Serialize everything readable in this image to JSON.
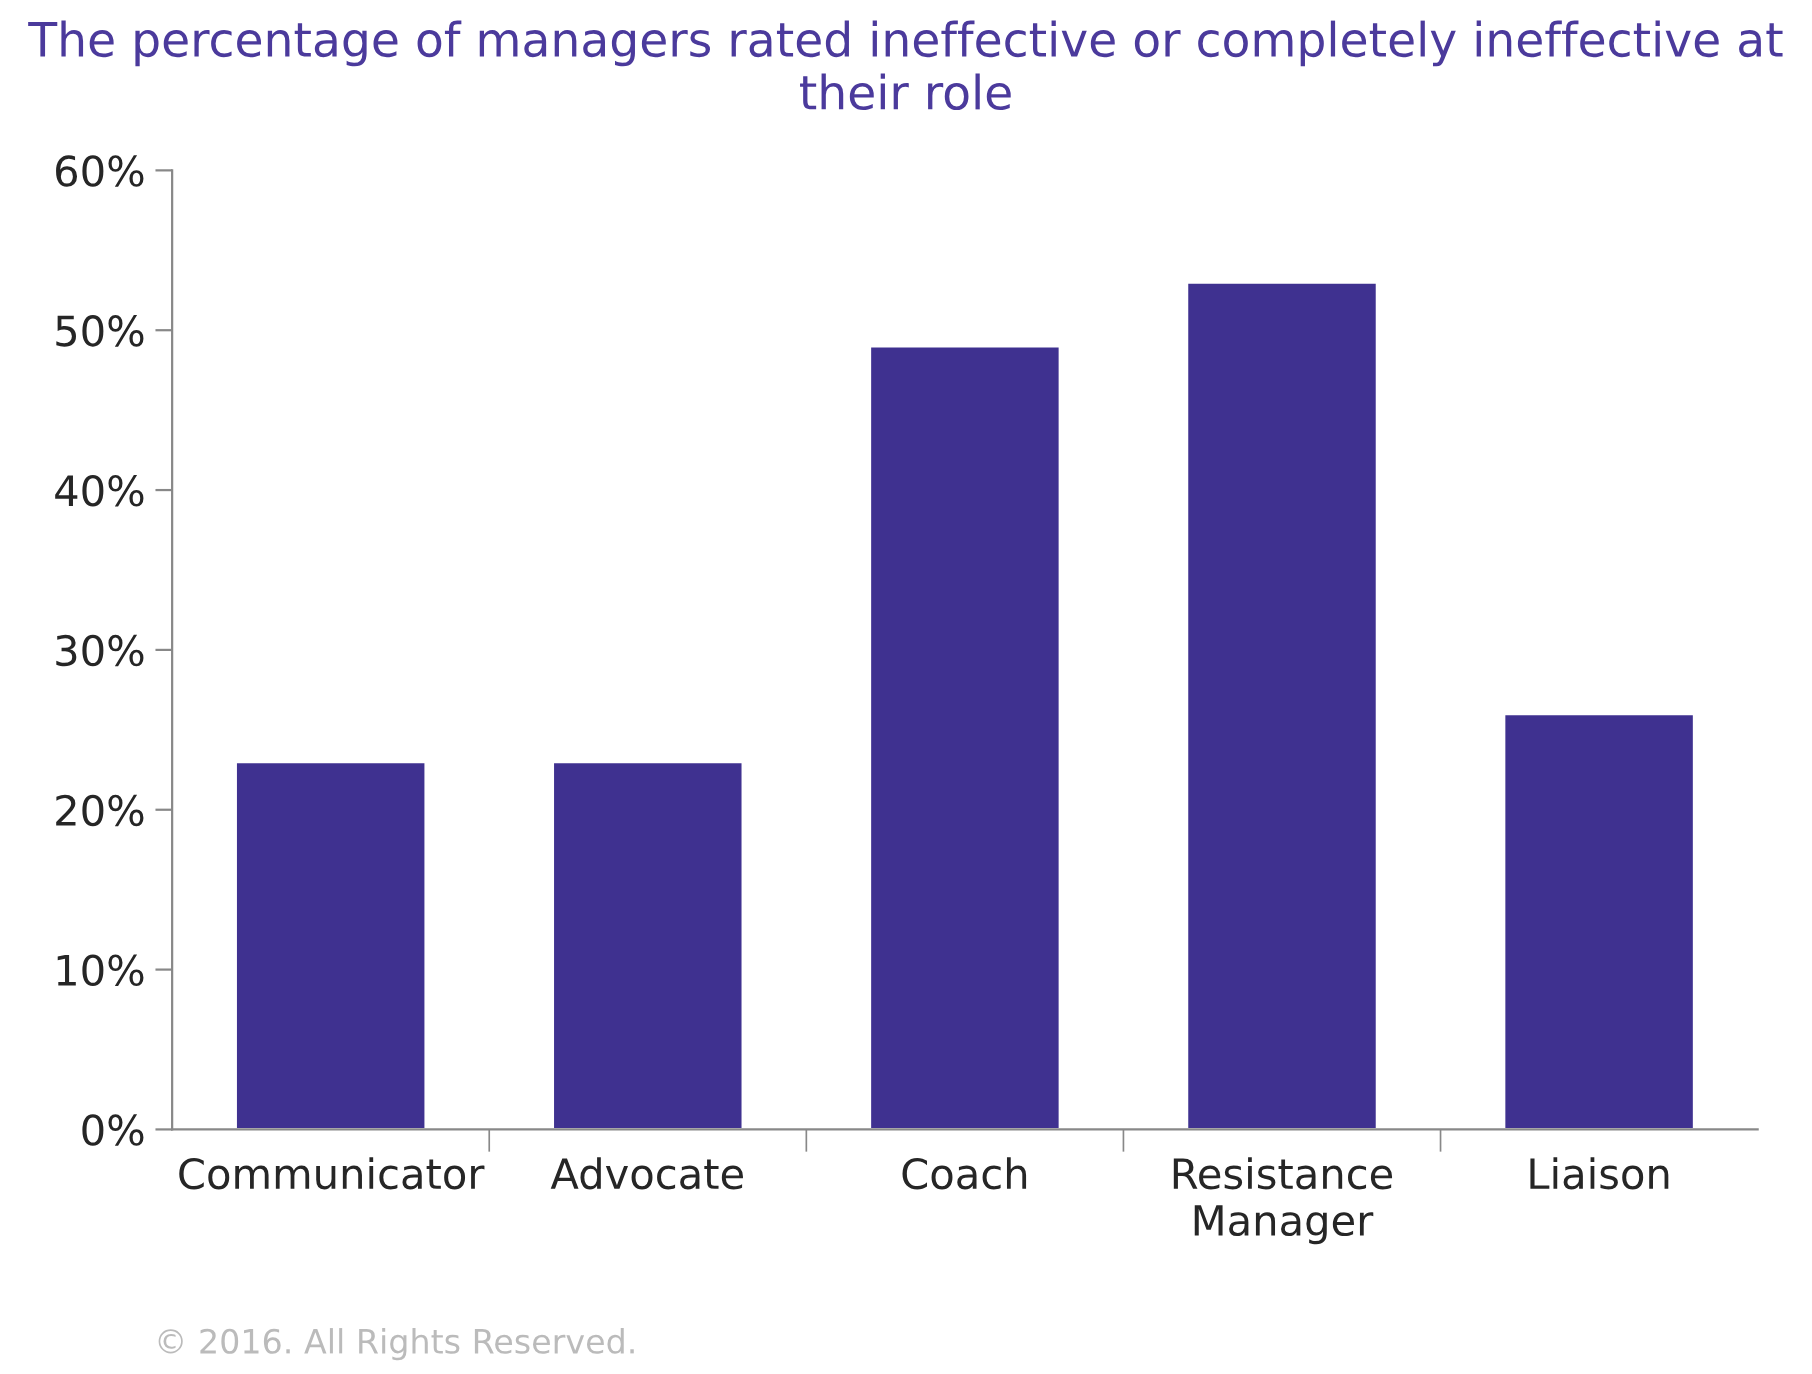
{
  "chart_data": {
    "type": "bar",
    "title": "The percentage of managers rated ineffective or completely ineffective at their role",
    "categories": [
      "Communicator",
      "Advocate",
      "Coach",
      "Resistance\nManager",
      "Liaison"
    ],
    "values": [
      23,
      23,
      49,
      53,
      26
    ],
    "color": "#3f3190",
    "ylim": [
      0,
      60
    ],
    "yticks": [
      {
        "value": 0,
        "label": "0%"
      },
      {
        "value": 10,
        "label": "10%"
      },
      {
        "value": 20,
        "label": "20%"
      },
      {
        "value": 30,
        "label": "30%"
      },
      {
        "value": 40,
        "label": "40%"
      },
      {
        "value": 50,
        "label": "50%"
      },
      {
        "value": 60,
        "label": "60%"
      }
    ],
    "grid": false,
    "legend": false,
    "annotations": [
      "© 2016. All Rights Reserved."
    ]
  }
}
